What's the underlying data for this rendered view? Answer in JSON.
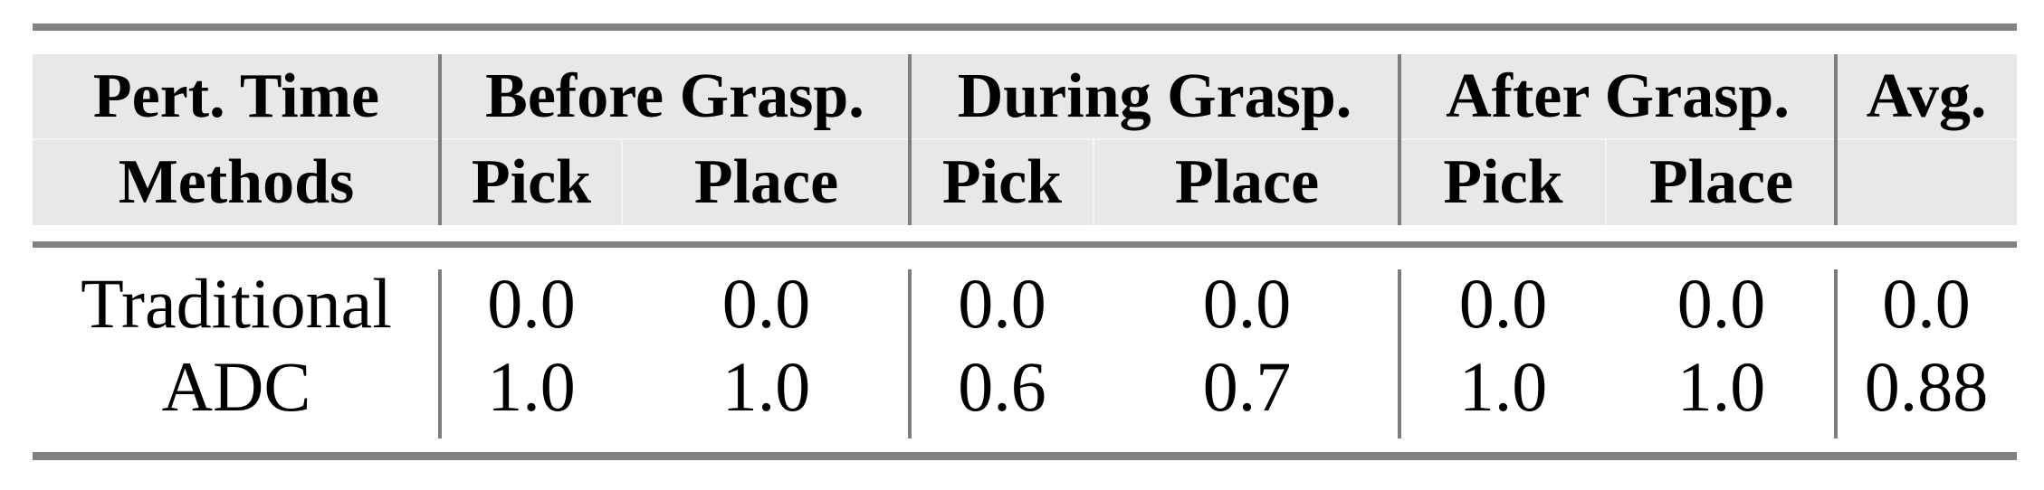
{
  "figure": {
    "header": {
      "col1": {
        "line1": "Pert. Time",
        "line2": "Methods"
      },
      "groups": [
        {
          "title": "Before Grasp.",
          "sub": [
            "Pick",
            "Place"
          ]
        },
        {
          "title": "During Grasp.",
          "sub": [
            "Pick",
            "Place"
          ]
        },
        {
          "title": "After Grasp.",
          "sub": [
            "Pick",
            "Place"
          ]
        }
      ],
      "avg": "Avg."
    },
    "rows": [
      {
        "method": "Traditional",
        "values": [
          "0.0",
          "0.0",
          "0.0",
          "0.0",
          "0.0",
          "0.0",
          "0.0"
        ]
      },
      {
        "method": "ADC",
        "values": [
          "1.0",
          "1.0",
          "0.6",
          "0.7",
          "1.0",
          "1.0",
          "0.88"
        ]
      }
    ],
    "colors": {
      "rule_gray": "#828282",
      "divider_gray": "#7d7d7d",
      "header_bg": "#e8e8e8",
      "seam": "#f4f4f4",
      "text": "#000000"
    }
  }
}
